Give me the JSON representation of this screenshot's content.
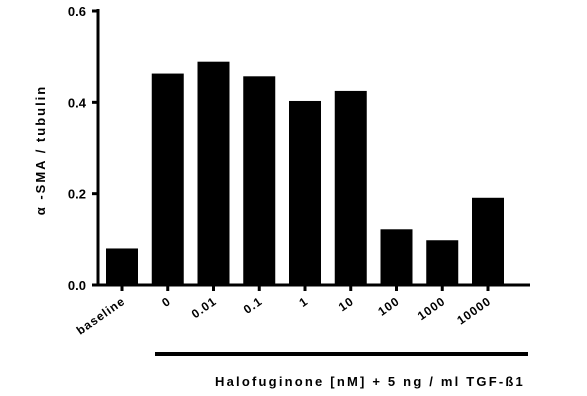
{
  "chart_data": {
    "type": "bar",
    "categories": [
      "baseline",
      "0",
      "0.01",
      "0.1",
      "1",
      "10",
      "100",
      "1000",
      "10000"
    ],
    "values": [
      0.08,
      0.463,
      0.489,
      0.457,
      0.403,
      0.425,
      0.122,
      0.098,
      0.191
    ],
    "ylabel": "α -SMA / tubulin",
    "xlabel": "Halofuginone [nM] + 5 ng / ml TGF-ß1",
    "ylim": [
      0,
      0.6
    ],
    "yticks": [
      0.0,
      0.2,
      0.4,
      0.6
    ],
    "ytick_labels": [
      "0.0",
      "0.2",
      "0.4",
      "0.6"
    ],
    "grid": false,
    "bar_color": "#000000"
  }
}
